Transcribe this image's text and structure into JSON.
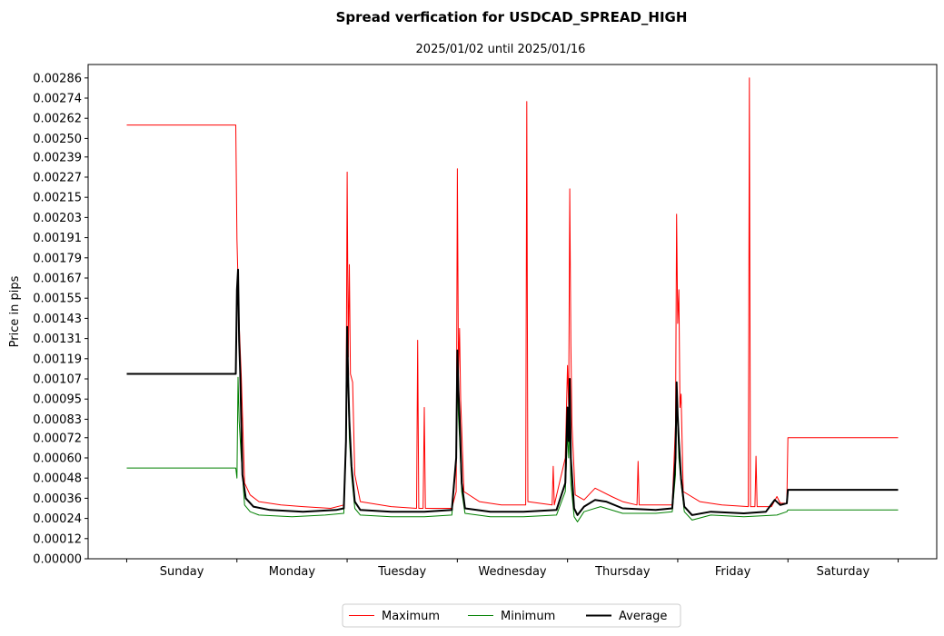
{
  "chart_data": {
    "type": "line",
    "title": "Spread verfication for USDCAD_SPREAD_HIGH",
    "subtitle": "2025/01/02 until 2025/01/16",
    "ylabel": "Price in pips",
    "xlabel": "",
    "ylim": [
      0,
      0.00294
    ],
    "xlim": [
      -0.35,
      7.35
    ],
    "yticks": [
      "0.00000",
      "0.00012",
      "0.00024",
      "0.00036",
      "0.00048",
      "0.00060",
      "0.00072",
      "0.00083",
      "0.00095",
      "0.00107",
      "0.00119",
      "0.00131",
      "0.00143",
      "0.00155",
      "0.00167",
      "0.00179",
      "0.00191",
      "0.00203",
      "0.00215",
      "0.00227",
      "0.00239",
      "0.00250",
      "0.00262",
      "0.00274",
      "0.00286"
    ],
    "categories": [
      "Sunday",
      "Monday",
      "Tuesday",
      "Wednesday",
      "Thursday",
      "Friday",
      "Saturday"
    ],
    "legend_position": "bottom-center",
    "series": [
      {
        "name": "Maximum",
        "color": "#ff0000",
        "points": [
          [
            0,
            0.00258
          ],
          [
            0.99,
            0.00258
          ],
          [
            1.0,
            0.0019
          ],
          [
            1.02,
            0.0014
          ],
          [
            1.04,
            0.00108
          ],
          [
            1.07,
            0.00045
          ],
          [
            1.12,
            0.00038
          ],
          [
            1.2,
            0.00034
          ],
          [
            1.4,
            0.00032
          ],
          [
            1.6,
            0.00031
          ],
          [
            1.85,
            0.0003
          ],
          [
            1.97,
            0.00032
          ],
          [
            1.99,
            0.0007
          ],
          [
            2.0,
            0.0023
          ],
          [
            2.01,
            0.0012
          ],
          [
            2.02,
            0.00175
          ],
          [
            2.03,
            0.0011
          ],
          [
            2.05,
            0.00105
          ],
          [
            2.07,
            0.0005
          ],
          [
            2.12,
            0.00034
          ],
          [
            2.4,
            0.00031
          ],
          [
            2.63,
            0.0003
          ],
          [
            2.64,
            0.0013
          ],
          [
            2.65,
            0.0003
          ],
          [
            2.69,
            0.0003
          ],
          [
            2.7,
            0.0009
          ],
          [
            2.71,
            0.0003
          ],
          [
            2.95,
            0.0003
          ],
          [
            2.99,
            0.0004
          ],
          [
            3.0,
            0.00232
          ],
          [
            3.01,
            0.0011
          ],
          [
            3.02,
            0.00137
          ],
          [
            3.03,
            0.00095
          ],
          [
            3.06,
            0.0004
          ],
          [
            3.2,
            0.00034
          ],
          [
            3.4,
            0.00032
          ],
          [
            3.62,
            0.00032
          ],
          [
            3.63,
            0.00272
          ],
          [
            3.64,
            0.00034
          ],
          [
            3.86,
            0.00032
          ],
          [
            3.87,
            0.00055
          ],
          [
            3.88,
            0.00032
          ],
          [
            3.98,
            0.0006
          ],
          [
            4.0,
            0.00115
          ],
          [
            4.01,
            0.0009
          ],
          [
            4.02,
            0.0022
          ],
          [
            4.03,
            0.00128
          ],
          [
            4.04,
            0.0008
          ],
          [
            4.07,
            0.00038
          ],
          [
            4.15,
            0.00035
          ],
          [
            4.25,
            0.00042
          ],
          [
            4.4,
            0.00037
          ],
          [
            4.5,
            0.00034
          ],
          [
            4.63,
            0.00032
          ],
          [
            4.64,
            0.00058
          ],
          [
            4.65,
            0.00032
          ],
          [
            4.95,
            0.00032
          ],
          [
            4.98,
            0.0008
          ],
          [
            4.99,
            0.00205
          ],
          [
            5.0,
            0.0014
          ],
          [
            5.01,
            0.0016
          ],
          [
            5.02,
            0.0009
          ],
          [
            5.03,
            0.00098
          ],
          [
            5.05,
            0.0004
          ],
          [
            5.2,
            0.00034
          ],
          [
            5.4,
            0.00032
          ],
          [
            5.64,
            0.00031
          ],
          [
            5.65,
            0.00286
          ],
          [
            5.66,
            0.00031
          ],
          [
            5.7,
            0.00031
          ],
          [
            5.71,
            0.00061
          ],
          [
            5.72,
            0.00031
          ],
          [
            5.85,
            0.00031
          ],
          [
            5.9,
            0.00037
          ],
          [
            5.93,
            0.00033
          ],
          [
            5.99,
            0.00033
          ],
          [
            6.0,
            0.00072
          ],
          [
            7.0,
            0.00072
          ]
        ]
      },
      {
        "name": "Minimum",
        "color": "#008000",
        "points": [
          [
            0,
            0.00054
          ],
          [
            0.99,
            0.00054
          ],
          [
            1.0,
            0.00048
          ],
          [
            1.01,
            0.00108
          ],
          [
            1.02,
            0.00082
          ],
          [
            1.04,
            0.0006
          ],
          [
            1.07,
            0.00032
          ],
          [
            1.12,
            0.00028
          ],
          [
            1.2,
            0.00026
          ],
          [
            1.5,
            0.00025
          ],
          [
            1.8,
            0.00026
          ],
          [
            1.97,
            0.00027
          ],
          [
            1.99,
            0.00065
          ],
          [
            2.0,
            0.0013
          ],
          [
            2.01,
            0.001
          ],
          [
            2.02,
            0.00072
          ],
          [
            2.04,
            0.0005
          ],
          [
            2.07,
            0.0003
          ],
          [
            2.12,
            0.00026
          ],
          [
            2.4,
            0.00025
          ],
          [
            2.7,
            0.00025
          ],
          [
            2.95,
            0.00026
          ],
          [
            2.99,
            0.0006
          ],
          [
            3.0,
            0.00105
          ],
          [
            3.01,
            0.00085
          ],
          [
            3.02,
            0.00072
          ],
          [
            3.04,
            0.0004
          ],
          [
            3.07,
            0.00027
          ],
          [
            3.3,
            0.00025
          ],
          [
            3.6,
            0.00025
          ],
          [
            3.9,
            0.00026
          ],
          [
            3.98,
            0.0004
          ],
          [
            4.0,
            0.00075
          ],
          [
            4.01,
            0.0006
          ],
          [
            4.02,
            0.0008
          ],
          [
            4.03,
            0.00045
          ],
          [
            4.06,
            0.00025
          ],
          [
            4.09,
            0.00022
          ],
          [
            4.15,
            0.00028
          ],
          [
            4.3,
            0.00031
          ],
          [
            4.5,
            0.00027
          ],
          [
            4.8,
            0.00027
          ],
          [
            4.95,
            0.00028
          ],
          [
            4.98,
            0.0005
          ],
          [
            4.99,
            0.00095
          ],
          [
            5.0,
            0.0008
          ],
          [
            5.01,
            0.0006
          ],
          [
            5.03,
            0.00045
          ],
          [
            5.06,
            0.00028
          ],
          [
            5.13,
            0.00023
          ],
          [
            5.3,
            0.00026
          ],
          [
            5.6,
            0.00025
          ],
          [
            5.9,
            0.00026
          ],
          [
            5.99,
            0.00028
          ],
          [
            6.0,
            0.00029
          ],
          [
            7.0,
            0.00029
          ]
        ]
      },
      {
        "name": "Average",
        "color": "#000000",
        "points": [
          [
            0,
            0.0011
          ],
          [
            0.99,
            0.0011
          ],
          [
            1.0,
            0.0016
          ],
          [
            1.01,
            0.00172
          ],
          [
            1.02,
            0.0013
          ],
          [
            1.03,
            0.0011
          ],
          [
            1.05,
            0.0005
          ],
          [
            1.08,
            0.00036
          ],
          [
            1.15,
            0.00031
          ],
          [
            1.3,
            0.00029
          ],
          [
            1.6,
            0.00028
          ],
          [
            1.9,
            0.00029
          ],
          [
            1.97,
            0.0003
          ],
          [
            1.99,
            0.0007
          ],
          [
            2.0,
            0.00138
          ],
          [
            2.01,
            0.00105
          ],
          [
            2.02,
            0.00082
          ],
          [
            2.04,
            0.00055
          ],
          [
            2.07,
            0.00034
          ],
          [
            2.12,
            0.00029
          ],
          [
            2.4,
            0.00028
          ],
          [
            2.7,
            0.00028
          ],
          [
            2.95,
            0.00029
          ],
          [
            2.99,
            0.0006
          ],
          [
            3.0,
            0.00124
          ],
          [
            3.01,
            0.001
          ],
          [
            3.02,
            0.00085
          ],
          [
            3.04,
            0.00045
          ],
          [
            3.07,
            0.0003
          ],
          [
            3.3,
            0.00028
          ],
          [
            3.6,
            0.00028
          ],
          [
            3.9,
            0.00029
          ],
          [
            3.98,
            0.00045
          ],
          [
            4.0,
            0.0009
          ],
          [
            4.01,
            0.0007
          ],
          [
            4.02,
            0.00107
          ],
          [
            4.03,
            0.0006
          ],
          [
            4.06,
            0.0003
          ],
          [
            4.09,
            0.00026
          ],
          [
            4.15,
            0.00031
          ],
          [
            4.25,
            0.00035
          ],
          [
            4.35,
            0.00034
          ],
          [
            4.5,
            0.0003
          ],
          [
            4.8,
            0.00029
          ],
          [
            4.95,
            0.0003
          ],
          [
            4.98,
            0.0006
          ],
          [
            4.99,
            0.00105
          ],
          [
            5.0,
            0.00085
          ],
          [
            5.01,
            0.0007
          ],
          [
            5.03,
            0.00048
          ],
          [
            5.06,
            0.00031
          ],
          [
            5.13,
            0.00026
          ],
          [
            5.3,
            0.00028
          ],
          [
            5.6,
            0.00027
          ],
          [
            5.8,
            0.00028
          ],
          [
            5.88,
            0.00035
          ],
          [
            5.93,
            0.00032
          ],
          [
            5.99,
            0.00033
          ],
          [
            6.0,
            0.00041
          ],
          [
            7.0,
            0.00041
          ]
        ]
      }
    ]
  }
}
